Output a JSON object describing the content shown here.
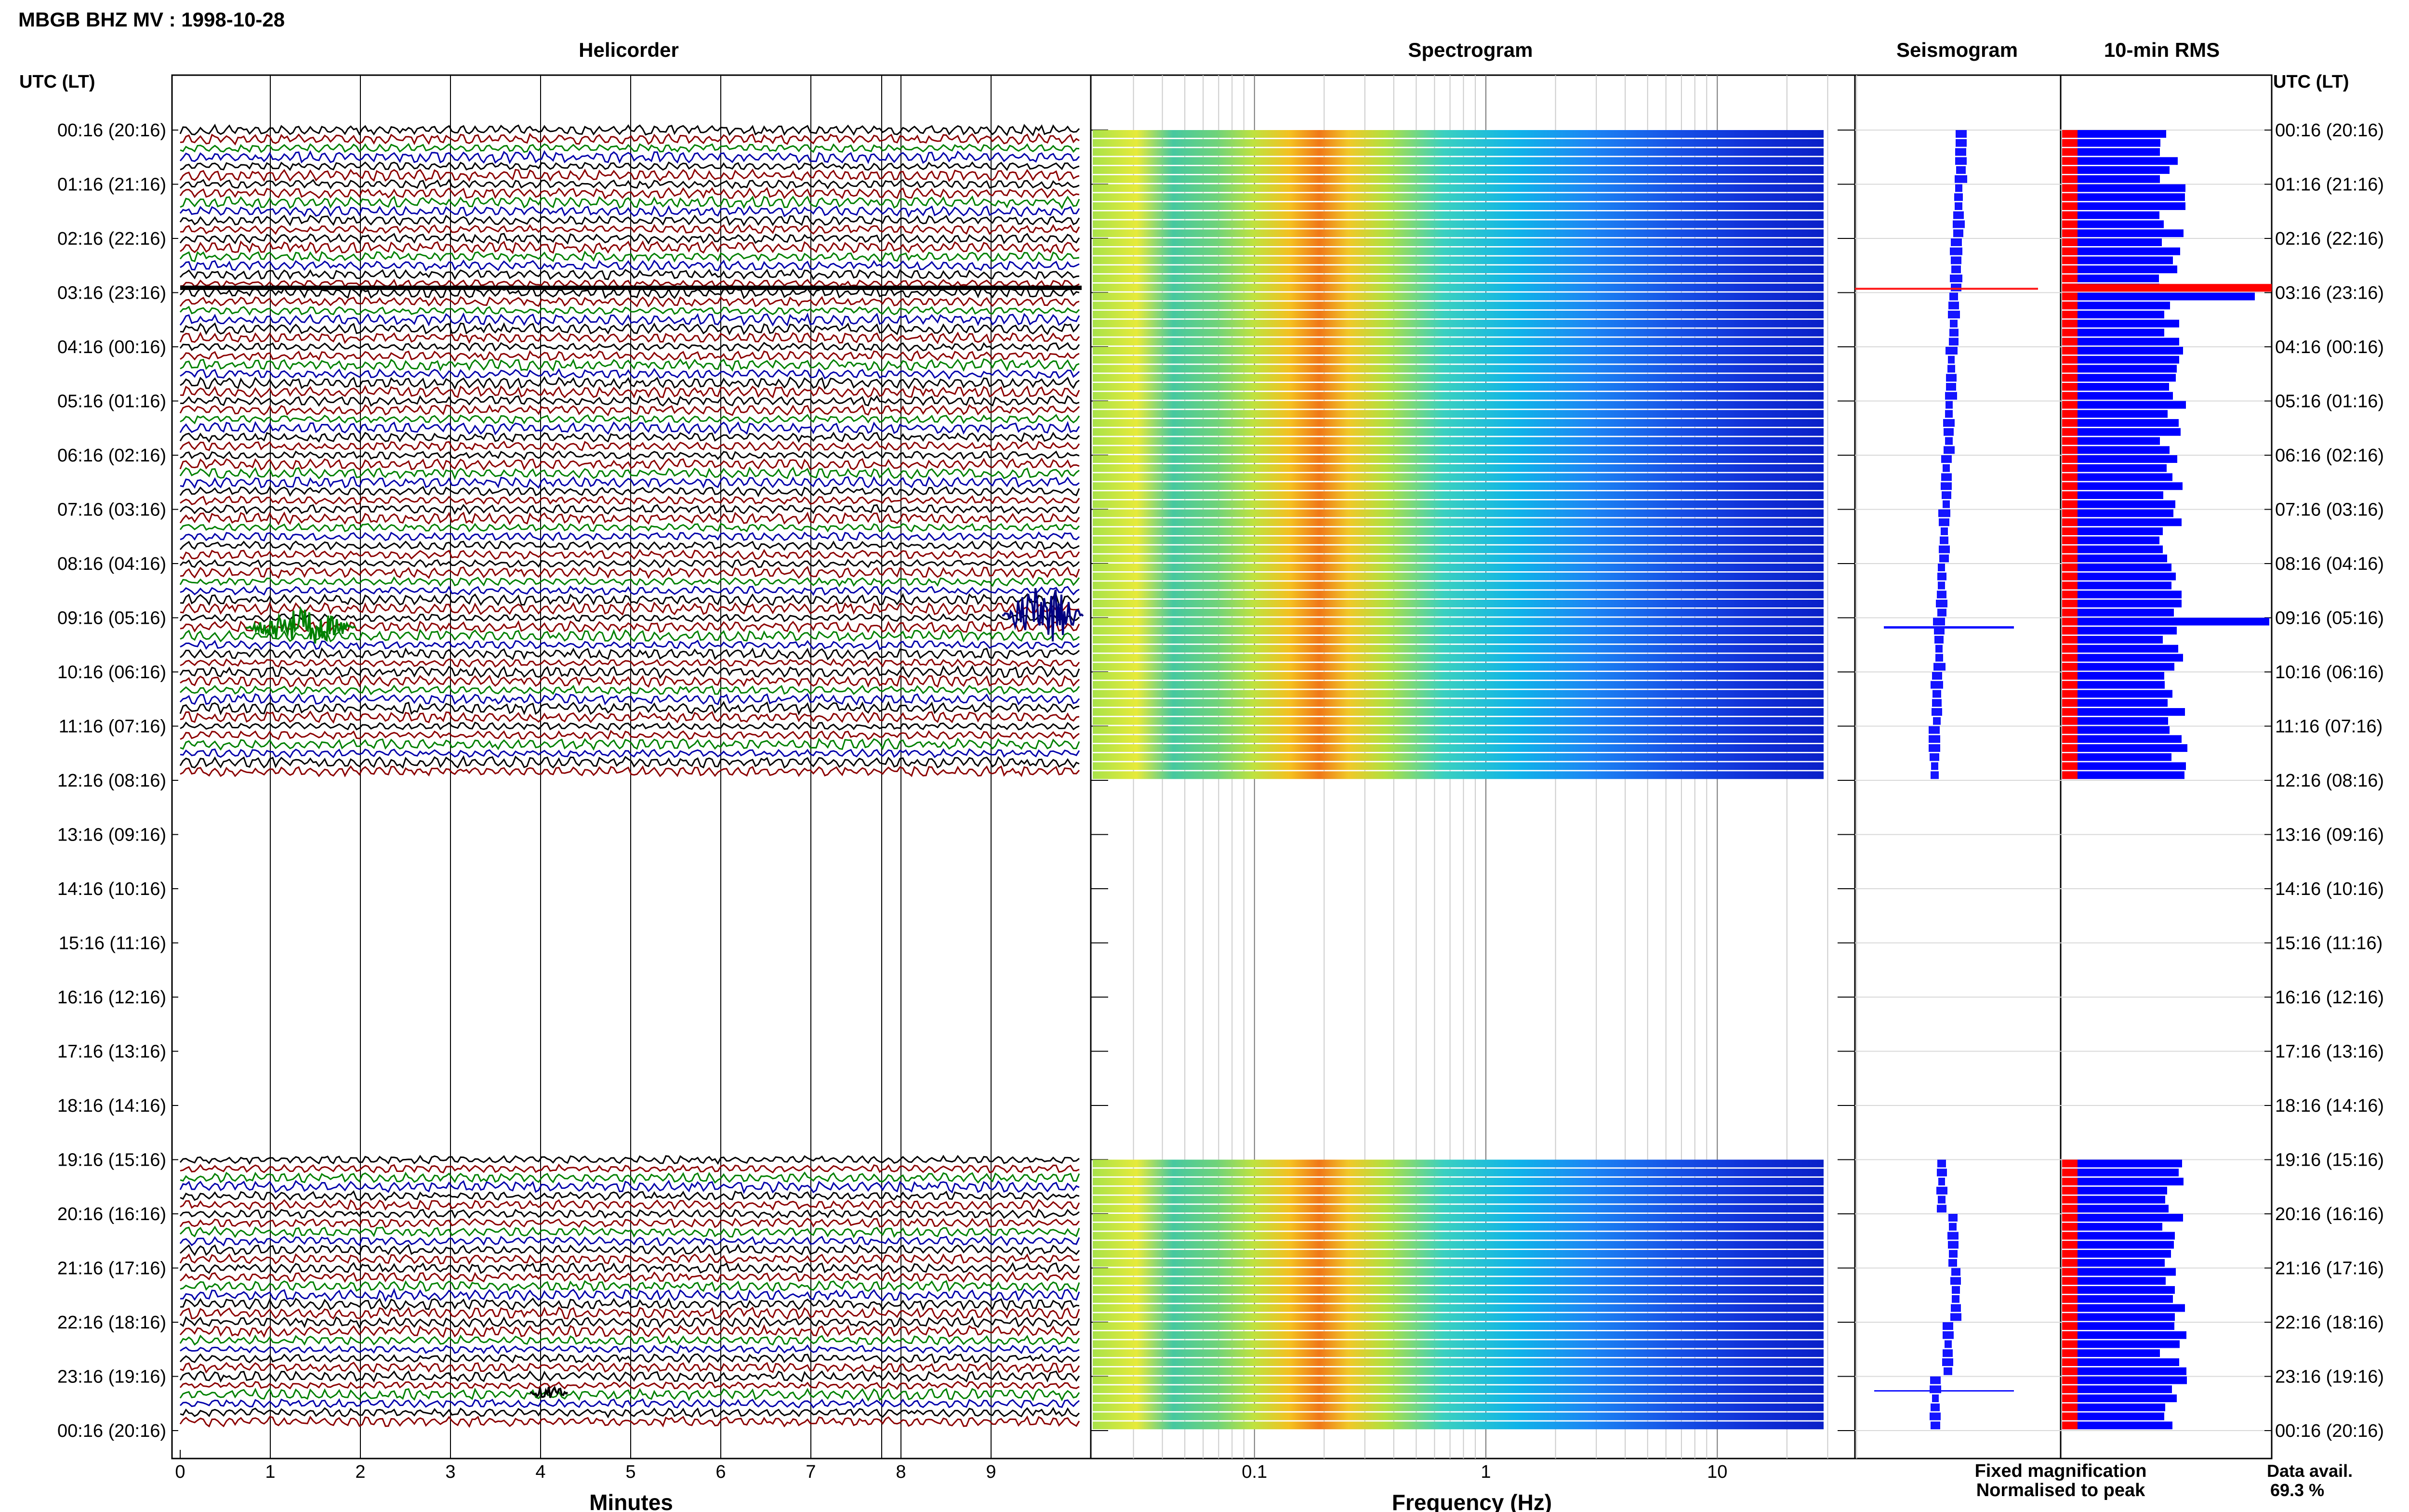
{
  "title": "MBGB BHZ MV : 1998-10-28",
  "panels": {
    "helicorder": "Helicorder",
    "spectrogram": "Spectrogram",
    "seismogram": "Seismogram",
    "rms": "10-min RMS"
  },
  "time_axis_label": "UTC (LT)",
  "time_labels": [
    "00:16 (20:16)",
    "01:16 (21:16)",
    "02:16 (22:16)",
    "03:16 (23:16)",
    "04:16 (00:16)",
    "05:16 (01:16)",
    "06:16 (02:16)",
    "07:16 (03:16)",
    "08:16 (04:16)",
    "09:16 (05:16)",
    "10:16 (06:16)",
    "11:16 (07:16)",
    "12:16 (08:16)",
    "13:16 (09:16)",
    "14:16 (10:16)",
    "15:16 (11:16)",
    "16:16 (12:16)",
    "17:16 (13:16)",
    "18:16 (14:16)",
    "19:16 (15:16)",
    "20:16 (16:16)",
    "21:16 (17:16)",
    "22:16 (18:16)",
    "23:16 (19:16)",
    "00:16 (20:16)"
  ],
  "minutes_ticks": [
    "0",
    "1",
    "2",
    "3",
    "4",
    "5",
    "6",
    "7",
    "8",
    "9"
  ],
  "minutes_label": "Minutes",
  "freq_ticks": [
    "0.1",
    "1",
    "10"
  ],
  "freq_label": "Frequency (Hz)",
  "legend": {
    "fixed": "Fixed magnification",
    "normalised": "Normalised to peak",
    "fixed_color": "#1414ff",
    "normalised_color": "#ff1414"
  },
  "data_avail": {
    "label": "Data avail.",
    "value": "69.3 %"
  },
  "colors": {
    "trace_cycle": [
      "#000000",
      "#8b0000",
      "#008000",
      "#0000aa"
    ],
    "rms_bar": "#0000ff",
    "rms_norm": "#ff0000"
  },
  "chart_data": {
    "type": "heatmap",
    "station": "MBGB BHZ MV",
    "date": "1998-10-28",
    "helicorder": {
      "xlabel": "Minutes",
      "xlim": [
        0,
        10
      ],
      "rows_per_hour": 6,
      "data_hours": [
        [
          0,
          12
        ],
        [
          19,
          24
        ]
      ]
    },
    "spectrogram": {
      "xlabel": "Frequency (Hz)",
      "xscale": "log",
      "xlim": [
        0.02,
        50
      ],
      "dominant_band_hz": [
        0.2,
        0.3
      ]
    },
    "events": [
      {
        "time": "03:16",
        "type": "spike"
      },
      {
        "time": "09:16",
        "type": "event"
      },
      {
        "time": "23:16",
        "type": "event"
      }
    ]
  }
}
